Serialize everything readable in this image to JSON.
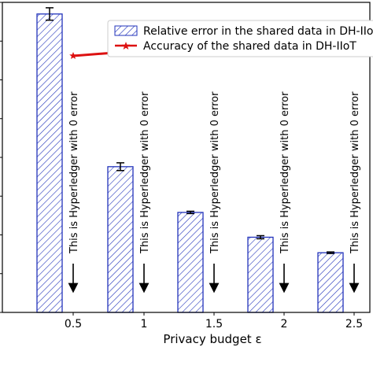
{
  "chart_data": {
    "type": "bar",
    "categories": [
      "0.5",
      "1",
      "1.5",
      "2",
      "2.5"
    ],
    "xlabel": "Privacy budget ε",
    "ylabel": "",
    "ylim": [
      0,
      4.0
    ],
    "y_ticks": [
      "0.0",
      "0.5",
      "1.0",
      "1.5",
      "2.0",
      "2.5",
      "3.0",
      "3.5",
      "4.0"
    ],
    "series": [
      {
        "name": "Relative error in the shared data in DH-IIoT",
        "type": "bar",
        "values": [
          3.85,
          1.88,
          1.29,
          0.97,
          0.77
        ],
        "errors": [
          0.08,
          0.05,
          0.015,
          0.02,
          0.01
        ],
        "color": "#2233bb",
        "hatch": "diagonal"
      },
      {
        "name": "Accuracy of the shared data in DH-IIoT",
        "type": "line",
        "values": [
          3.31,
          3.38,
          3.395,
          3.405,
          3.41
        ],
        "color": "#dd1111",
        "marker": "star"
      }
    ],
    "annotations": [
      "This is Hyperledger with 0 error",
      "This is Hyperledger with 0 error",
      "This is Hyperledger with 0 error",
      "This is Hyperledger with 0 error",
      "This is Hyperledger with 0 error"
    ],
    "legend_position": "top-right",
    "grid": false
  }
}
